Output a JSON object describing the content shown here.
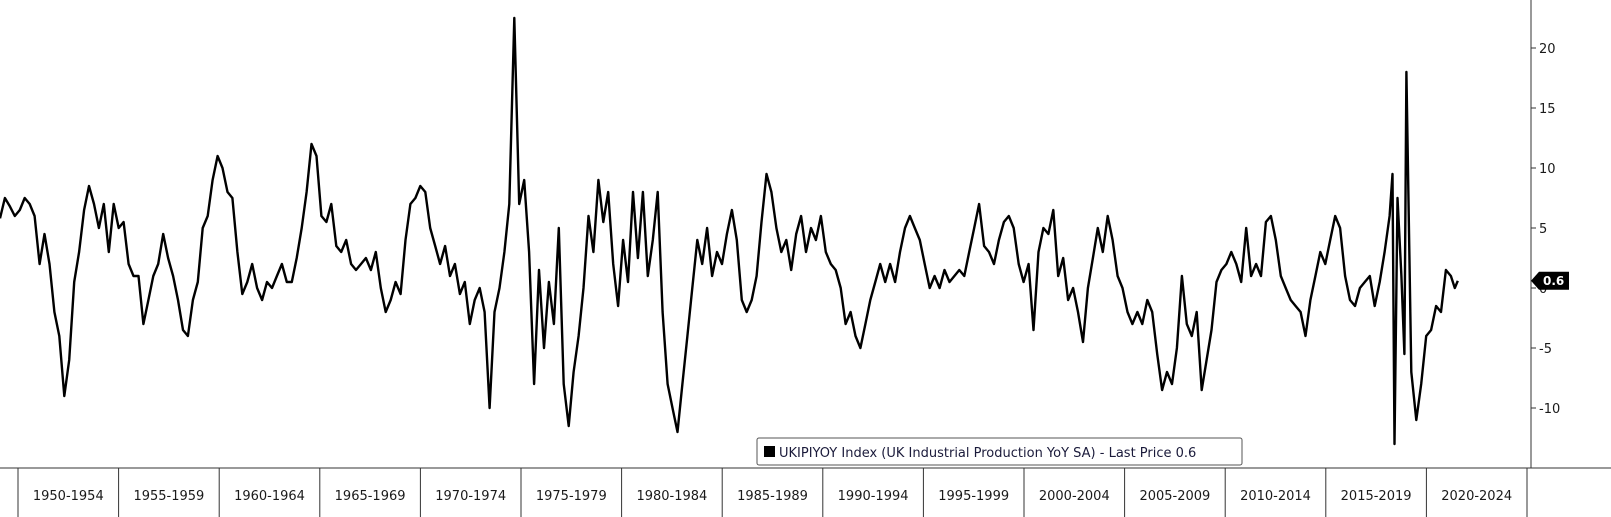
{
  "chart_data": {
    "type": "line",
    "title": "",
    "xlabel": "",
    "ylabel": "",
    "xlim": [
      1948.5,
      2025.9
    ],
    "ylim": [
      -15,
      24
    ],
    "grid": false,
    "legend_position": "bottom-right",
    "y_ticks": [
      20,
      15,
      10,
      5,
      0,
      -5,
      -10
    ],
    "x_bands": [
      "1950-1954",
      "1955-1959",
      "1960-1964",
      "1965-1969",
      "1970-1974",
      "1975-1979",
      "1980-1984",
      "1985-1989",
      "1990-1994",
      "1995-1999",
      "2000-2004",
      "2005-2009",
      "2010-2014",
      "2015-2019",
      "2020-2024"
    ],
    "last_value_label": "0.6",
    "series": [
      {
        "name": "UKIPIYOY Index (UK Industrial Production YoY SA) - Last Price 0.6",
        "color": "#000000",
        "points": [
          [
            1948.5,
            5.8
          ],
          [
            1948.75,
            7.5
          ],
          [
            1949.0,
            6.8
          ],
          [
            1949.25,
            6.0
          ],
          [
            1949.5,
            6.5
          ],
          [
            1949.75,
            7.5
          ],
          [
            1950.0,
            7.0
          ],
          [
            1950.25,
            6.0
          ],
          [
            1950.5,
            2.0
          ],
          [
            1950.75,
            4.5
          ],
          [
            1951.0,
            2.0
          ],
          [
            1951.25,
            -2.0
          ],
          [
            1951.5,
            -4.0
          ],
          [
            1951.75,
            -9.0
          ],
          [
            1952.0,
            -6.0
          ],
          [
            1952.25,
            0.5
          ],
          [
            1952.5,
            3.0
          ],
          [
            1952.75,
            6.5
          ],
          [
            1953.0,
            8.5
          ],
          [
            1953.25,
            7.0
          ],
          [
            1953.5,
            5.0
          ],
          [
            1953.75,
            7.0
          ],
          [
            1954.0,
            3.0
          ],
          [
            1954.25,
            7.0
          ],
          [
            1954.5,
            5.0
          ],
          [
            1954.75,
            5.5
          ],
          [
            1955.0,
            2.0
          ],
          [
            1955.25,
            1.0
          ],
          [
            1955.5,
            1.0
          ],
          [
            1955.75,
            -3.0
          ],
          [
            1956.0,
            -1.0
          ],
          [
            1956.25,
            1.0
          ],
          [
            1956.5,
            2.0
          ],
          [
            1956.75,
            4.5
          ],
          [
            1957.0,
            2.5
          ],
          [
            1957.25,
            1.0
          ],
          [
            1957.5,
            -1.0
          ],
          [
            1957.75,
            -3.5
          ],
          [
            1958.0,
            -4.0
          ],
          [
            1958.25,
            -1.0
          ],
          [
            1958.5,
            0.5
          ],
          [
            1958.75,
            5.0
          ],
          [
            1959.0,
            6.0
          ],
          [
            1959.25,
            9.0
          ],
          [
            1959.5,
            11.0
          ],
          [
            1959.75,
            10.0
          ],
          [
            1960.0,
            8.0
          ],
          [
            1960.25,
            7.5
          ],
          [
            1960.5,
            3.0
          ],
          [
            1960.75,
            -0.5
          ],
          [
            1961.0,
            0.5
          ],
          [
            1961.25,
            2.0
          ],
          [
            1961.5,
            0.0
          ],
          [
            1961.75,
            -1.0
          ],
          [
            1962.0,
            0.5
          ],
          [
            1962.25,
            0.0
          ],
          [
            1962.5,
            1.0
          ],
          [
            1962.75,
            2.0
          ],
          [
            1963.0,
            0.5
          ],
          [
            1963.25,
            0.5
          ],
          [
            1963.5,
            2.5
          ],
          [
            1963.75,
            5.0
          ],
          [
            1964.0,
            8.0
          ],
          [
            1964.25,
            12.0
          ],
          [
            1964.5,
            11.0
          ],
          [
            1964.75,
            6.0
          ],
          [
            1965.0,
            5.5
          ],
          [
            1965.25,
            7.0
          ],
          [
            1965.5,
            3.5
          ],
          [
            1965.75,
            3.0
          ],
          [
            1966.0,
            4.0
          ],
          [
            1966.25,
            2.0
          ],
          [
            1966.5,
            1.5
          ],
          [
            1966.75,
            2.0
          ],
          [
            1967.0,
            2.5
          ],
          [
            1967.25,
            1.5
          ],
          [
            1967.5,
            3.0
          ],
          [
            1967.75,
            0.0
          ],
          [
            1968.0,
            -2.0
          ],
          [
            1968.25,
            -1.0
          ],
          [
            1968.5,
            0.5
          ],
          [
            1968.75,
            -0.5
          ],
          [
            1969.0,
            4.0
          ],
          [
            1969.25,
            7.0
          ],
          [
            1969.5,
            7.5
          ],
          [
            1969.75,
            8.5
          ],
          [
            1970.0,
            8.0
          ],
          [
            1970.25,
            5.0
          ],
          [
            1970.5,
            3.5
          ],
          [
            1970.75,
            2.0
          ],
          [
            1971.0,
            3.5
          ],
          [
            1971.25,
            1.0
          ],
          [
            1971.5,
            2.0
          ],
          [
            1971.75,
            -0.5
          ],
          [
            1972.0,
            0.5
          ],
          [
            1972.25,
            -3.0
          ],
          [
            1972.5,
            -1.0
          ],
          [
            1972.75,
            0.0
          ],
          [
            1973.0,
            -2.0
          ],
          [
            1973.25,
            -10.0
          ],
          [
            1973.5,
            -2.0
          ],
          [
            1973.75,
            0.0
          ],
          [
            1974.0,
            3.0
          ],
          [
            1974.25,
            7.0
          ],
          [
            1974.5,
            22.5
          ],
          [
            1974.75,
            7.0
          ],
          [
            1975.0,
            9.0
          ],
          [
            1975.25,
            3.0
          ],
          [
            1975.5,
            -8.0
          ],
          [
            1975.75,
            1.5
          ],
          [
            1976.0,
            -5.0
          ],
          [
            1976.25,
            0.5
          ],
          [
            1976.5,
            -3.0
          ],
          [
            1976.75,
            5.0
          ],
          [
            1977.0,
            -8.0
          ],
          [
            1977.25,
            -11.5
          ],
          [
            1977.5,
            -7.0
          ],
          [
            1977.75,
            -4.0
          ],
          [
            1978.0,
            0.0
          ],
          [
            1978.25,
            6.0
          ],
          [
            1978.5,
            3.0
          ],
          [
            1978.75,
            9.0
          ],
          [
            1979.0,
            5.5
          ],
          [
            1979.25,
            8.0
          ],
          [
            1979.5,
            2.0
          ],
          [
            1979.75,
            -1.5
          ],
          [
            1980.0,
            4.0
          ],
          [
            1980.25,
            0.5
          ],
          [
            1980.5,
            8.0
          ],
          [
            1980.75,
            2.5
          ],
          [
            1981.0,
            8.0
          ],
          [
            1981.25,
            1.0
          ],
          [
            1981.5,
            4.0
          ],
          [
            1981.75,
            8.0
          ],
          [
            1982.0,
            -2.0
          ],
          [
            1982.25,
            -8.0
          ],
          [
            1982.5,
            -10.0
          ],
          [
            1982.75,
            -12.0
          ],
          [
            1983.0,
            -8.0
          ],
          [
            1983.25,
            -4.0
          ],
          [
            1983.5,
            0.0
          ],
          [
            1983.75,
            4.0
          ],
          [
            1984.0,
            2.0
          ],
          [
            1984.25,
            5.0
          ],
          [
            1984.5,
            1.0
          ],
          [
            1984.75,
            3.0
          ],
          [
            1985.0,
            2.0
          ],
          [
            1985.25,
            4.5
          ],
          [
            1985.5,
            6.5
          ],
          [
            1985.75,
            4.0
          ],
          [
            1986.0,
            -1.0
          ],
          [
            1986.25,
            -2.0
          ],
          [
            1986.5,
            -1.0
          ],
          [
            1986.75,
            1.0
          ],
          [
            1987.0,
            5.5
          ],
          [
            1987.25,
            9.5
          ],
          [
            1987.5,
            8.0
          ],
          [
            1987.75,
            5.0
          ],
          [
            1988.0,
            3.0
          ],
          [
            1988.25,
            4.0
          ],
          [
            1988.5,
            1.5
          ],
          [
            1988.75,
            4.5
          ],
          [
            1989.0,
            6.0
          ],
          [
            1989.25,
            3.0
          ],
          [
            1989.5,
            5.0
          ],
          [
            1989.75,
            4.0
          ],
          [
            1990.0,
            6.0
          ],
          [
            1990.25,
            3.0
          ],
          [
            1990.5,
            2.0
          ],
          [
            1990.75,
            1.5
          ],
          [
            1991.0,
            0.0
          ],
          [
            1991.25,
            -3.0
          ],
          [
            1991.5,
            -2.0
          ],
          [
            1991.75,
            -4.0
          ],
          [
            1992.0,
            -5.0
          ],
          [
            1992.25,
            -3.0
          ],
          [
            1992.5,
            -1.0
          ],
          [
            1992.75,
            0.5
          ],
          [
            1993.0,
            2.0
          ],
          [
            1993.25,
            0.5
          ],
          [
            1993.5,
            2.0
          ],
          [
            1993.75,
            0.5
          ],
          [
            1994.0,
            3.0
          ],
          [
            1994.25,
            5.0
          ],
          [
            1994.5,
            6.0
          ],
          [
            1994.75,
            5.0
          ],
          [
            1995.0,
            4.0
          ],
          [
            1995.25,
            2.0
          ],
          [
            1995.5,
            0.0
          ],
          [
            1995.75,
            1.0
          ],
          [
            1996.0,
            0.0
          ],
          [
            1996.25,
            1.5
          ],
          [
            1996.5,
            0.5
          ],
          [
            1996.75,
            1.0
          ],
          [
            1997.0,
            1.5
          ],
          [
            1997.25,
            1.0
          ],
          [
            1997.5,
            3.0
          ],
          [
            1997.75,
            5.0
          ],
          [
            1998.0,
            7.0
          ],
          [
            1998.25,
            3.5
          ],
          [
            1998.5,
            3.0
          ],
          [
            1998.75,
            2.0
          ],
          [
            1999.0,
            4.0
          ],
          [
            1999.25,
            5.5
          ],
          [
            1999.5,
            6.0
          ],
          [
            1999.75,
            5.0
          ],
          [
            2000.0,
            2.0
          ],
          [
            2000.25,
            0.5
          ],
          [
            2000.5,
            2.0
          ],
          [
            2000.75,
            -3.5
          ],
          [
            2001.0,
            3.0
          ],
          [
            2001.25,
            5.0
          ],
          [
            2001.5,
            4.5
          ],
          [
            2001.75,
            6.5
          ],
          [
            2002.0,
            1.0
          ],
          [
            2002.25,
            2.5
          ],
          [
            2002.5,
            -1.0
          ],
          [
            2002.75,
            0.0
          ],
          [
            2003.0,
            -2.0
          ],
          [
            2003.25,
            -4.5
          ],
          [
            2003.5,
            0.0
          ],
          [
            2003.75,
            2.5
          ],
          [
            2004.0,
            5.0
          ],
          [
            2004.25,
            3.0
          ],
          [
            2004.5,
            6.0
          ],
          [
            2004.75,
            4.0
          ],
          [
            2005.0,
            1.0
          ],
          [
            2005.25,
            0.0
          ],
          [
            2005.5,
            -2.0
          ],
          [
            2005.75,
            -3.0
          ],
          [
            2006.0,
            -2.0
          ],
          [
            2006.25,
            -3.0
          ],
          [
            2006.5,
            -1.0
          ],
          [
            2006.75,
            -2.0
          ],
          [
            2007.0,
            -5.5
          ],
          [
            2007.25,
            -8.5
          ],
          [
            2007.5,
            -7.0
          ],
          [
            2007.75,
            -8.0
          ],
          [
            2008.0,
            -5.0
          ],
          [
            2008.25,
            1.0
          ],
          [
            2008.5,
            -3.0
          ],
          [
            2008.75,
            -4.0
          ],
          [
            2009.0,
            -2.0
          ],
          [
            2009.25,
            -8.5
          ],
          [
            2009.5,
            -6.0
          ],
          [
            2009.75,
            -3.5
          ],
          [
            2010.0,
            0.5
          ],
          [
            2010.25,
            1.5
          ],
          [
            2010.5,
            2.0
          ],
          [
            2010.75,
            3.0
          ],
          [
            2011.0,
            2.0
          ],
          [
            2011.25,
            0.5
          ],
          [
            2011.5,
            5.0
          ],
          [
            2011.75,
            1.0
          ],
          [
            2012.0,
            2.0
          ],
          [
            2012.25,
            1.0
          ],
          [
            2012.5,
            5.5
          ],
          [
            2012.75,
            6.0
          ],
          [
            2013.0,
            4.0
          ],
          [
            2013.25,
            1.0
          ],
          [
            2013.5,
            0.0
          ],
          [
            2013.75,
            -1.0
          ],
          [
            2014.0,
            -1.5
          ],
          [
            2014.25,
            -2.0
          ],
          [
            2014.5,
            -4.0
          ],
          [
            2014.75,
            -1.0
          ],
          [
            2015.0,
            1.0
          ],
          [
            2015.25,
            3.0
          ],
          [
            2015.5,
            2.0
          ],
          [
            2015.75,
            4.0
          ],
          [
            2016.0,
            6.0
          ],
          [
            2016.25,
            5.0
          ],
          [
            2016.5,
            1.0
          ],
          [
            2016.75,
            -1.0
          ],
          [
            2017.0,
            -1.5
          ],
          [
            2017.25,
            0.0
          ],
          [
            2017.5,
            0.5
          ],
          [
            2017.75,
            1.0
          ],
          [
            2018.0,
            -1.5
          ],
          [
            2018.25,
            0.5
          ],
          [
            2018.5,
            3.0
          ],
          [
            2018.75,
            6.0
          ],
          [
            2018.9,
            9.5
          ],
          [
            2019.0,
            -13.0
          ],
          [
            2019.15,
            7.5
          ],
          [
            2019.35,
            1.0
          ],
          [
            2019.5,
            -5.5
          ],
          [
            2019.6,
            18.0
          ],
          [
            2019.85,
            -7.0
          ],
          [
            2020.1,
            -11.0
          ],
          [
            2020.35,
            -8.0
          ],
          [
            2020.6,
            -4.0
          ],
          [
            2020.85,
            -3.5
          ],
          [
            2021.1,
            -1.5
          ],
          [
            2021.35,
            -2.0
          ],
          [
            2021.6,
            1.5
          ],
          [
            2021.85,
            1.0
          ],
          [
            2022.05,
            0.0
          ],
          [
            2022.2,
            0.6
          ]
        ]
      }
    ]
  }
}
